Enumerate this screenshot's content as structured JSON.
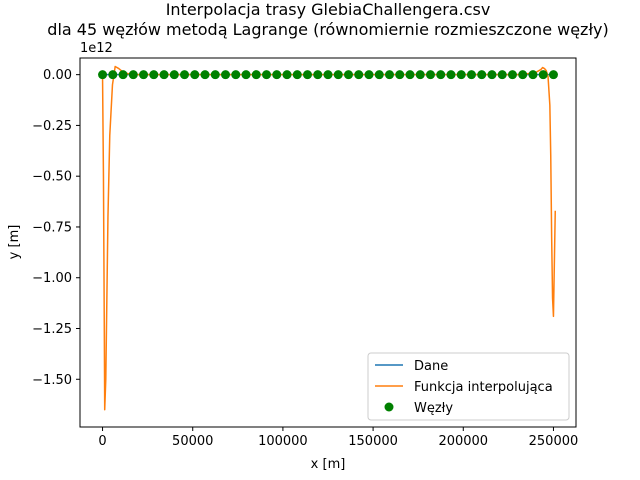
{
  "colors": {
    "dane": "#1f77b4",
    "interp": "#ff7f0e",
    "nodes": "#008000",
    "axis": "#000000",
    "legend_border": "#cccccc"
  },
  "chart_data": {
    "type": "line",
    "title_line1": "Interpolacja trasy GlebiaChallengera.csv",
    "title_line2": "dla 45 węzłów metodą  Lagrange (równomiernie rozmieszczone węzły)",
    "xlabel": "x [m]",
    "ylabel": "y [m]",
    "y_offset_text": "1e12",
    "xlim": [
      -12500,
      262500
    ],
    "ylim": [
      -1735000000000.0,
      82000000000.0
    ],
    "x_ticks": [
      0,
      50000,
      100000,
      150000,
      200000,
      250000
    ],
    "x_tick_labels": [
      "0",
      "50000",
      "100000",
      "150000",
      "200000",
      "250000"
    ],
    "y_ticks": [
      0.0,
      -250000000000.0,
      -500000000000.0,
      -750000000000.0,
      -1000000000000.0,
      -1250000000000.0,
      -1500000000000.0
    ],
    "y_tick_labels": [
      "0.00",
      "−0.25",
      "−0.50",
      "−0.75",
      "−1.00",
      "−1.25",
      "−1.50"
    ],
    "legend": {
      "placement": "lower right",
      "entries": [
        "Dane",
        "Funkcja interpolująca",
        "Węzły"
      ]
    },
    "series": [
      {
        "name": "Dane",
        "x": [
          0,
          250000
        ],
        "y": [
          -5000,
          -5000
        ]
      },
      {
        "name": "Funkcja interpolująca",
        "x": [
          0,
          500,
          1000,
          1200,
          1800,
          3000,
          4000,
          5500,
          7000,
          9000,
          11000,
          14000,
          18000,
          25000,
          50000,
          100000,
          150000,
          200000,
          232000,
          240000,
          243000,
          244000,
          245000,
          246000,
          247000,
          248000,
          248500,
          249000,
          249500,
          250000,
          251000
        ],
        "y": [
          -10000000000.0,
          -500000000000.0,
          -1300000000000.0,
          -1650000000000.0,
          -1500000000000.0,
          -700000000000.0,
          -300000000000.0,
          -50000000000.0,
          40000000000.0,
          30000000000.0,
          15000000000.0,
          5000000000.0,
          0.0,
          0.0,
          0.0,
          0.0,
          0.0,
          0.0,
          0.0,
          10000000000.0,
          25000000000.0,
          35000000000.0,
          30000000000.0,
          20000000000.0,
          -10000000000.0,
          -150000000000.0,
          -400000000000.0,
          -800000000000.0,
          -1100000000000.0,
          -1190000000000.0,
          -670000000000.0
        ]
      },
      {
        "name": "Węzły",
        "x": [
          0,
          5682,
          11364,
          17045,
          22727,
          28409,
          34091,
          39773,
          45455,
          51136,
          56818,
          62500,
          68182,
          73864,
          79545,
          85227,
          90909,
          96591,
          102273,
          107955,
          113636,
          119318,
          125000,
          130682,
          136364,
          142045,
          147727,
          153409,
          159091,
          164773,
          170455,
          176136,
          181818,
          187500,
          193182,
          198864,
          204545,
          210227,
          215909,
          221591,
          227273,
          232955,
          238636,
          244318,
          250000
        ],
        "y": [
          -5000,
          -5000,
          -5000,
          -5000,
          -5000,
          -5000,
          -5000,
          -5000,
          -5000,
          -5000,
          -5000,
          -5000,
          -5000,
          -5000,
          -5000,
          -5000,
          -5000,
          -5000,
          -5000,
          -5000,
          -5000,
          -5000,
          -5000,
          -5000,
          -5000,
          -5000,
          -5000,
          -5000,
          -5000,
          -5000,
          -5000,
          -5000,
          -5000,
          -5000,
          -5000,
          -5000,
          -5000,
          -5000,
          -5000,
          -5000,
          -5000,
          -5000,
          -5000,
          -5000,
          -5000
        ]
      }
    ]
  }
}
